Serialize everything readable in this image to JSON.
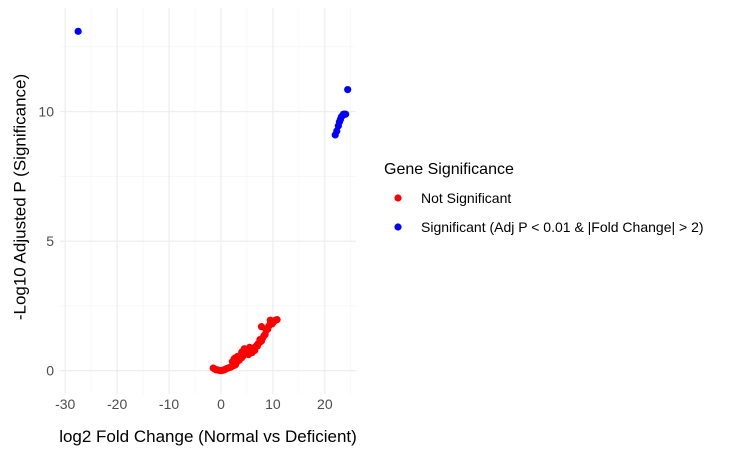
{
  "chart_data": {
    "type": "scatter",
    "title": "",
    "xlabel": "log2 Fold Change (Normal vs Deficient)",
    "ylabel": "-Log10 Adjusted P (Significance)",
    "xlim": [
      -31,
      26
    ],
    "ylim": [
      -0.9,
      14
    ],
    "x_ticks": [
      -30,
      -20,
      -10,
      0,
      10,
      20
    ],
    "y_ticks": [
      0,
      5,
      10
    ],
    "grid": true,
    "legend": {
      "title": "Gene Significance",
      "placement": "right"
    },
    "series": [
      {
        "name": "Not Significant",
        "color": "#ff0000",
        "points": [
          [
            -1.5,
            0.1
          ],
          [
            -1.2,
            0.06
          ],
          [
            -1.0,
            0.04
          ],
          [
            -0.8,
            0.03
          ],
          [
            -0.5,
            0.02
          ],
          [
            -0.3,
            0.01
          ],
          [
            0.0,
            0.0
          ],
          [
            0.2,
            0.01
          ],
          [
            0.4,
            0.02
          ],
          [
            0.6,
            0.03
          ],
          [
            0.8,
            0.05
          ],
          [
            1.0,
            0.07
          ],
          [
            1.2,
            0.09
          ],
          [
            1.5,
            0.11
          ],
          [
            1.8,
            0.13
          ],
          [
            2.0,
            0.15
          ],
          [
            2.2,
            0.18
          ],
          [
            2.5,
            0.2
          ],
          [
            2.8,
            0.23
          ],
          [
            2.2,
            0.35
          ],
          [
            2.5,
            0.45
          ],
          [
            2.8,
            0.5
          ],
          [
            3.0,
            0.32
          ],
          [
            3.2,
            0.55
          ],
          [
            3.5,
            0.4
          ],
          [
            3.8,
            0.6
          ],
          [
            4.0,
            0.5
          ],
          [
            4.0,
            0.72
          ],
          [
            4.3,
            0.58
          ],
          [
            4.5,
            0.66
          ],
          [
            4.5,
            0.85
          ],
          [
            4.8,
            0.75
          ],
          [
            5.0,
            0.8
          ],
          [
            5.3,
            0.62
          ],
          [
            5.5,
            0.75
          ],
          [
            5.5,
            0.9
          ],
          [
            5.8,
            0.84
          ],
          [
            6.0,
            0.7
          ],
          [
            6.3,
            0.82
          ],
          [
            6.5,
            0.9
          ],
          [
            6.5,
            0.78
          ],
          [
            6.8,
            0.95
          ],
          [
            7.0,
            0.95
          ],
          [
            7.0,
            1.0
          ],
          [
            7.2,
            1.05
          ],
          [
            7.5,
            1.1
          ],
          [
            7.8,
            1.15
          ],
          [
            7.5,
            1.2
          ],
          [
            8.0,
            1.25
          ],
          [
            8.3,
            1.35
          ],
          [
            8.5,
            1.4
          ],
          [
            8.7,
            1.55
          ],
          [
            9.0,
            1.6
          ],
          [
            9.2,
            1.72
          ],
          [
            9.5,
            1.8
          ],
          [
            9.8,
            1.8
          ],
          [
            10.0,
            1.85
          ],
          [
            10.2,
            1.9
          ],
          [
            10.5,
            1.95
          ],
          [
            10.8,
            1.97
          ],
          [
            9.5,
            1.95
          ],
          [
            7.8,
            1.7
          ]
        ]
      },
      {
        "name": "Significant (Adj P < 0.01 & |Fold Change| > 2)",
        "color": "#0000ff",
        "points": [
          [
            -27.5,
            13.1
          ],
          [
            22.0,
            9.1
          ],
          [
            22.3,
            9.25
          ],
          [
            22.6,
            9.45
          ],
          [
            22.8,
            9.6
          ],
          [
            23.0,
            9.7
          ],
          [
            23.2,
            9.8
          ],
          [
            23.4,
            9.85
          ],
          [
            23.6,
            9.9
          ],
          [
            23.8,
            9.9
          ],
          [
            24.0,
            9.9
          ],
          [
            24.4,
            10.85
          ]
        ]
      }
    ]
  }
}
